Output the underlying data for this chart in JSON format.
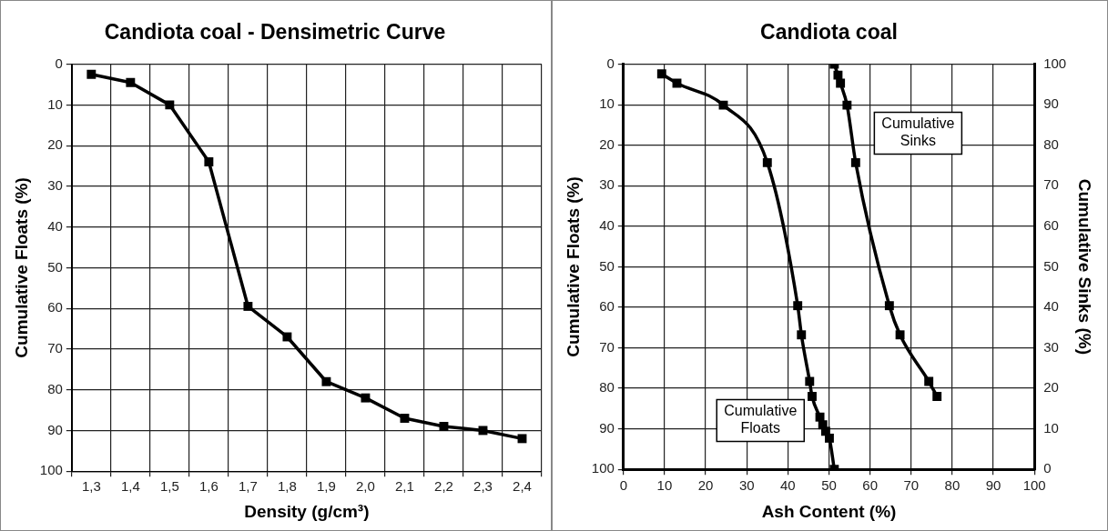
{
  "chart_data": [
    {
      "type": "line",
      "title": "Candiota coal - Densimetric Curve",
      "xlabel": "Density (g/cm³)",
      "ylabel": "Cumulative Floats (%)",
      "categories": [
        "1,3",
        "1,4",
        "1,5",
        "1,6",
        "1,7",
        "1,8",
        "1,9",
        "2,0",
        "2,1",
        "2,2",
        "2,3",
        "2,4"
      ],
      "series": [
        {
          "color": "#000000",
          "values": [
            2.5,
            4.5,
            10,
            24,
            59.5,
            67,
            78,
            82,
            87,
            89,
            90,
            92
          ]
        }
      ],
      "ylim": [
        100,
        0
      ],
      "yticks": [
        0,
        10,
        20,
        30,
        40,
        50,
        60,
        70,
        80,
        90,
        100
      ],
      "grid": true,
      "marker": "square"
    },
    {
      "type": "line",
      "title": "Candiota coal",
      "xlabel": "Ash Content (%)",
      "ylabel": "Cumulative Floats (%)",
      "y2label": "Cumulative Sinks (%)",
      "series": [
        {
          "name": "Cumulative Floats",
          "color": "#000000",
          "x": [
            9.3,
            13,
            24.3,
            35,
            42.4,
            43.3,
            45.3,
            45.9,
            47.8,
            48.5,
            49.2,
            50.1,
            51.3
          ],
          "values": [
            2.4,
            4.7,
            10.1,
            24.3,
            59.6,
            66.8,
            78.3,
            82,
            87.1,
            89,
            90.6,
            92.3,
            100
          ]
        },
        {
          "name": "Cumulative Sinks",
          "color": "#000000",
          "axis": "y2",
          "x": [
            51.3,
            52.2,
            52.8,
            54.4,
            56.5,
            64.7,
            67.3,
            74.3,
            76.3
          ],
          "values": [
            100,
            97.3,
            95.3,
            89.9,
            75.7,
            40.4,
            33.2,
            21.7,
            18
          ]
        }
      ],
      "xlim": [
        0,
        100
      ],
      "xticks": [
        0,
        10,
        20,
        30,
        40,
        50,
        60,
        70,
        80,
        90,
        100
      ],
      "ylim": [
        100,
        0
      ],
      "yticks": [
        0,
        10,
        20,
        30,
        40,
        50,
        60,
        70,
        80,
        90,
        100
      ],
      "y2lim": [
        0,
        100
      ],
      "y2ticks": [
        0,
        10,
        20,
        30,
        40,
        50,
        60,
        70,
        80,
        90,
        100
      ],
      "grid": true,
      "marker": "square"
    }
  ]
}
